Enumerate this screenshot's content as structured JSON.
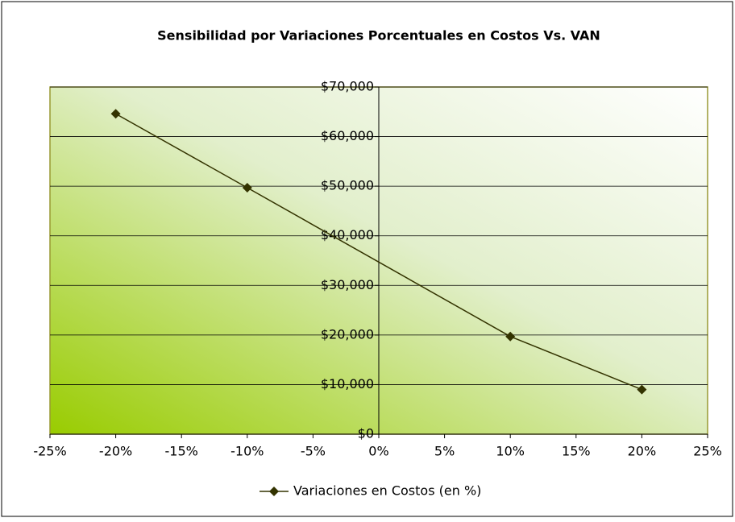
{
  "chart_data": {
    "type": "line",
    "title": "Sensibilidad por Variaciones Porcentuales en Costos Vs. VAN",
    "x": [
      -20,
      -10,
      10,
      20
    ],
    "series": [
      {
        "name": "Variaciones en Costos (en %)",
        "color": "#333300",
        "values": [
          64600,
          49700,
          19700,
          9000
        ]
      }
    ],
    "xlim": [
      -25,
      25
    ],
    "xticks": [
      {
        "value": -25,
        "label": "-25%"
      },
      {
        "value": -20,
        "label": "-20%"
      },
      {
        "value": -15,
        "label": "-15%"
      },
      {
        "value": -10,
        "label": "-10%"
      },
      {
        "value": -5,
        "label": "-5%"
      },
      {
        "value": 0,
        "label": "0%"
      },
      {
        "value": 5,
        "label": "5%"
      },
      {
        "value": 10,
        "label": "10%"
      },
      {
        "value": 15,
        "label": "15%"
      },
      {
        "value": 20,
        "label": "20%"
      },
      {
        "value": 25,
        "label": "25%"
      }
    ],
    "ylim": [
      0,
      70000
    ],
    "yticks": [
      {
        "value": 0,
        "label": "$0"
      },
      {
        "value": 10000,
        "label": "$10,000"
      },
      {
        "value": 20000,
        "label": "$20,000"
      },
      {
        "value": 30000,
        "label": "$30,000"
      },
      {
        "value": 40000,
        "label": "$40,000"
      },
      {
        "value": 50000,
        "label": "$50,000"
      },
      {
        "value": 60000,
        "label": "$60,000"
      },
      {
        "value": 70000,
        "label": "$70,000"
      }
    ],
    "grid": true,
    "legend": "bottom"
  }
}
